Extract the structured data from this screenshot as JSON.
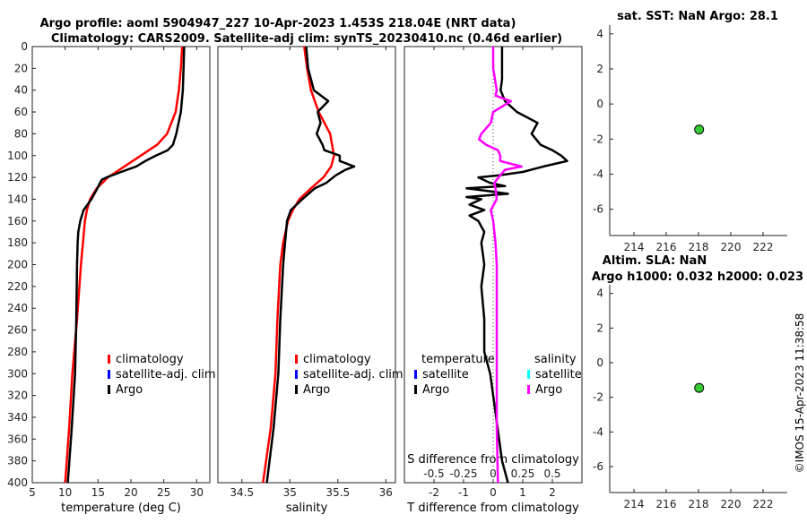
{
  "title": {
    "line1": "Argo profile: aoml 5904947_227 10-Apr-2023 1.453S 218.04E (NRT data)",
    "line2": "Climatology: CARS2009. Satellite-adj clim: synTS_20230410.nc (0.46d earlier)"
  },
  "side": {
    "sst_title": "sat. SST: NaN Argo: 28.1",
    "sla_title1": "Altim. SLA: NaN",
    "sla_title2": "Argo h1000: 0.032 h2000: 0.023",
    "stamp": "©IMOS 15-Apr-2023 11:38:58"
  },
  "colors": {
    "clim": "#ff0000",
    "sat": "#0000ff",
    "argo": "#000000",
    "argo_s": "#ff00ff",
    "sat_s": "#00ffff",
    "marker": "#33cc33"
  },
  "chart_data": [
    {
      "type": "line",
      "name": "temperature",
      "xlabel": "temperature (deg C)",
      "xlim": [
        5,
        32
      ],
      "ylim": [
        0,
        400
      ],
      "xticks": [
        5,
        10,
        15,
        20,
        25,
        30
      ],
      "yticks": [
        0,
        20,
        40,
        60,
        80,
        100,
        120,
        140,
        160,
        180,
        200,
        220,
        240,
        260,
        280,
        300,
        320,
        340,
        360,
        380,
        400
      ],
      "legend": [
        "climatology",
        "satellite-adj. clim",
        "Argo"
      ],
      "series": [
        {
          "name": "climatology",
          "depth": [
            0,
            20,
            40,
            60,
            80,
            90,
            100,
            110,
            120,
            130,
            140,
            150,
            160,
            180,
            200,
            250,
            300,
            350,
            400
          ],
          "values": [
            27.8,
            27.6,
            27.3,
            26.8,
            25.5,
            24.0,
            21.5,
            19.0,
            16.5,
            14.8,
            13.8,
            13.3,
            13.0,
            12.7,
            12.4,
            11.8,
            11.1,
            10.6,
            10.0
          ]
        },
        {
          "name": "Argo",
          "depth": [
            0,
            20,
            40,
            60,
            80,
            90,
            95,
            100,
            105,
            110,
            115,
            120,
            122,
            125,
            130,
            140,
            150,
            160,
            170,
            180,
            200,
            250,
            300,
            350,
            400
          ],
          "values": [
            28.1,
            28.0,
            27.9,
            27.6,
            26.9,
            26.4,
            25.6,
            23.8,
            22.2,
            20.8,
            18.5,
            16.3,
            15.6,
            15.3,
            14.9,
            14.0,
            12.8,
            12.3,
            12.0,
            11.9,
            11.8,
            11.7,
            11.5,
            11.0,
            10.4
          ]
        }
      ]
    },
    {
      "type": "line",
      "name": "salinity",
      "xlabel": "salinity",
      "xlim": [
        34.25,
        36.1
      ],
      "ylim": [
        0,
        400
      ],
      "xticks": [
        34.5,
        35,
        35.5,
        36
      ],
      "legend": [
        "climatology",
        "satellite-adj. clim",
        "Argo"
      ],
      "series": [
        {
          "name": "climatology",
          "depth": [
            0,
            20,
            40,
            60,
            80,
            100,
            110,
            120,
            130,
            140,
            150,
            160,
            180,
            200,
            250,
            300,
            350,
            400
          ],
          "values": [
            35.15,
            35.18,
            35.22,
            35.3,
            35.42,
            35.46,
            35.43,
            35.35,
            35.22,
            35.1,
            35.03,
            34.98,
            34.93,
            34.9,
            34.87,
            34.85,
            34.8,
            34.72
          ]
        },
        {
          "name": "Argo",
          "depth": [
            0,
            20,
            40,
            50,
            60,
            70,
            80,
            90,
            95,
            100,
            105,
            110,
            113,
            118,
            125,
            130,
            140,
            150,
            160,
            180,
            200,
            250,
            300,
            350,
            400
          ],
          "values": [
            35.17,
            35.19,
            35.25,
            35.4,
            35.29,
            35.32,
            35.28,
            35.34,
            35.36,
            35.52,
            35.52,
            35.67,
            35.58,
            35.48,
            35.38,
            35.26,
            35.13,
            35.01,
            34.97,
            34.95,
            34.93,
            34.9,
            34.88,
            34.83,
            34.76
          ]
        }
      ]
    },
    {
      "type": "line",
      "name": "differences",
      "xlabel": "T difference from climatology",
      "xlabel_top": "S difference from climatology",
      "xlim": [
        -3,
        3
      ],
      "ylim": [
        0,
        400
      ],
      "xticks": [
        -2,
        -1,
        0,
        1,
        2
      ],
      "xticks_top_labels": [
        "-0.5",
        "-0.25",
        "0",
        "0.25",
        "0.5"
      ],
      "xticks_top_values": [
        -0.5,
        -0.25,
        0,
        0.25,
        0.5
      ],
      "s_scale_factor": 4,
      "legend": {
        "temperature_header": "temperature",
        "salinity_header": "salinity",
        "items": [
          "satellite",
          "Argo",
          "satellite",
          "Argo"
        ]
      },
      "series": [
        {
          "name": "T Argo",
          "depth": [
            0,
            10,
            30,
            40,
            50,
            60,
            70,
            80,
            90,
            95,
            100,
            105,
            110,
            115,
            118,
            120,
            125,
            128,
            130,
            132,
            135,
            138,
            140,
            145,
            150,
            155,
            160,
            170,
            180,
            200,
            220,
            250,
            280,
            300,
            320,
            340,
            360,
            380,
            400
          ],
          "values": [
            0.3,
            0.3,
            0.3,
            0.25,
            0.4,
            0.8,
            1.5,
            1.3,
            1.6,
            2.0,
            2.3,
            2.5,
            1.7,
            1.0,
            0.2,
            -0.5,
            -0.1,
            0.4,
            -0.9,
            -0.3,
            0.5,
            -0.9,
            -0.4,
            -0.8,
            -0.3,
            -0.8,
            -0.5,
            -0.3,
            -0.4,
            -0.3,
            -0.4,
            -0.3,
            -0.3,
            -0.1,
            0.0,
            0.1,
            0.2,
            0.3,
            0.5
          ]
        },
        {
          "name": "S Argo",
          "depth": [
            0,
            20,
            40,
            45,
            50,
            60,
            70,
            80,
            85,
            90,
            95,
            100,
            105,
            110,
            113,
            118,
            125,
            130,
            140,
            150,
            160,
            180,
            200,
            250,
            300,
            350,
            400
          ],
          "values": [
            0.0,
            0.0,
            0.03,
            0.02,
            0.15,
            0.0,
            -0.02,
            -0.1,
            -0.12,
            -0.06,
            0.04,
            0.06,
            0.06,
            0.24,
            0.1,
            0.06,
            0.01,
            0.02,
            0.03,
            -0.02,
            0.0,
            0.02,
            0.03,
            0.03,
            0.03,
            0.03,
            0.04
          ]
        }
      ]
    },
    {
      "type": "scatter",
      "name": "sst",
      "xlim": [
        212.5,
        223.5
      ],
      "ylim": [
        -7.5,
        4.5
      ],
      "xticks": [
        214,
        216,
        218,
        220,
        222
      ],
      "yticks": [
        -6,
        -4,
        -2,
        0,
        2,
        4
      ],
      "points": [
        {
          "x": 218.04,
          "y": -1.453
        }
      ]
    },
    {
      "type": "scatter",
      "name": "sla",
      "xlim": [
        212.5,
        223.5
      ],
      "ylim": [
        -7.5,
        4.5
      ],
      "xticks": [
        214,
        216,
        218,
        220,
        222
      ],
      "yticks": [
        -6,
        -4,
        -2,
        0,
        2,
        4
      ],
      "points": [
        {
          "x": 218.04,
          "y": -1.453
        }
      ]
    }
  ]
}
